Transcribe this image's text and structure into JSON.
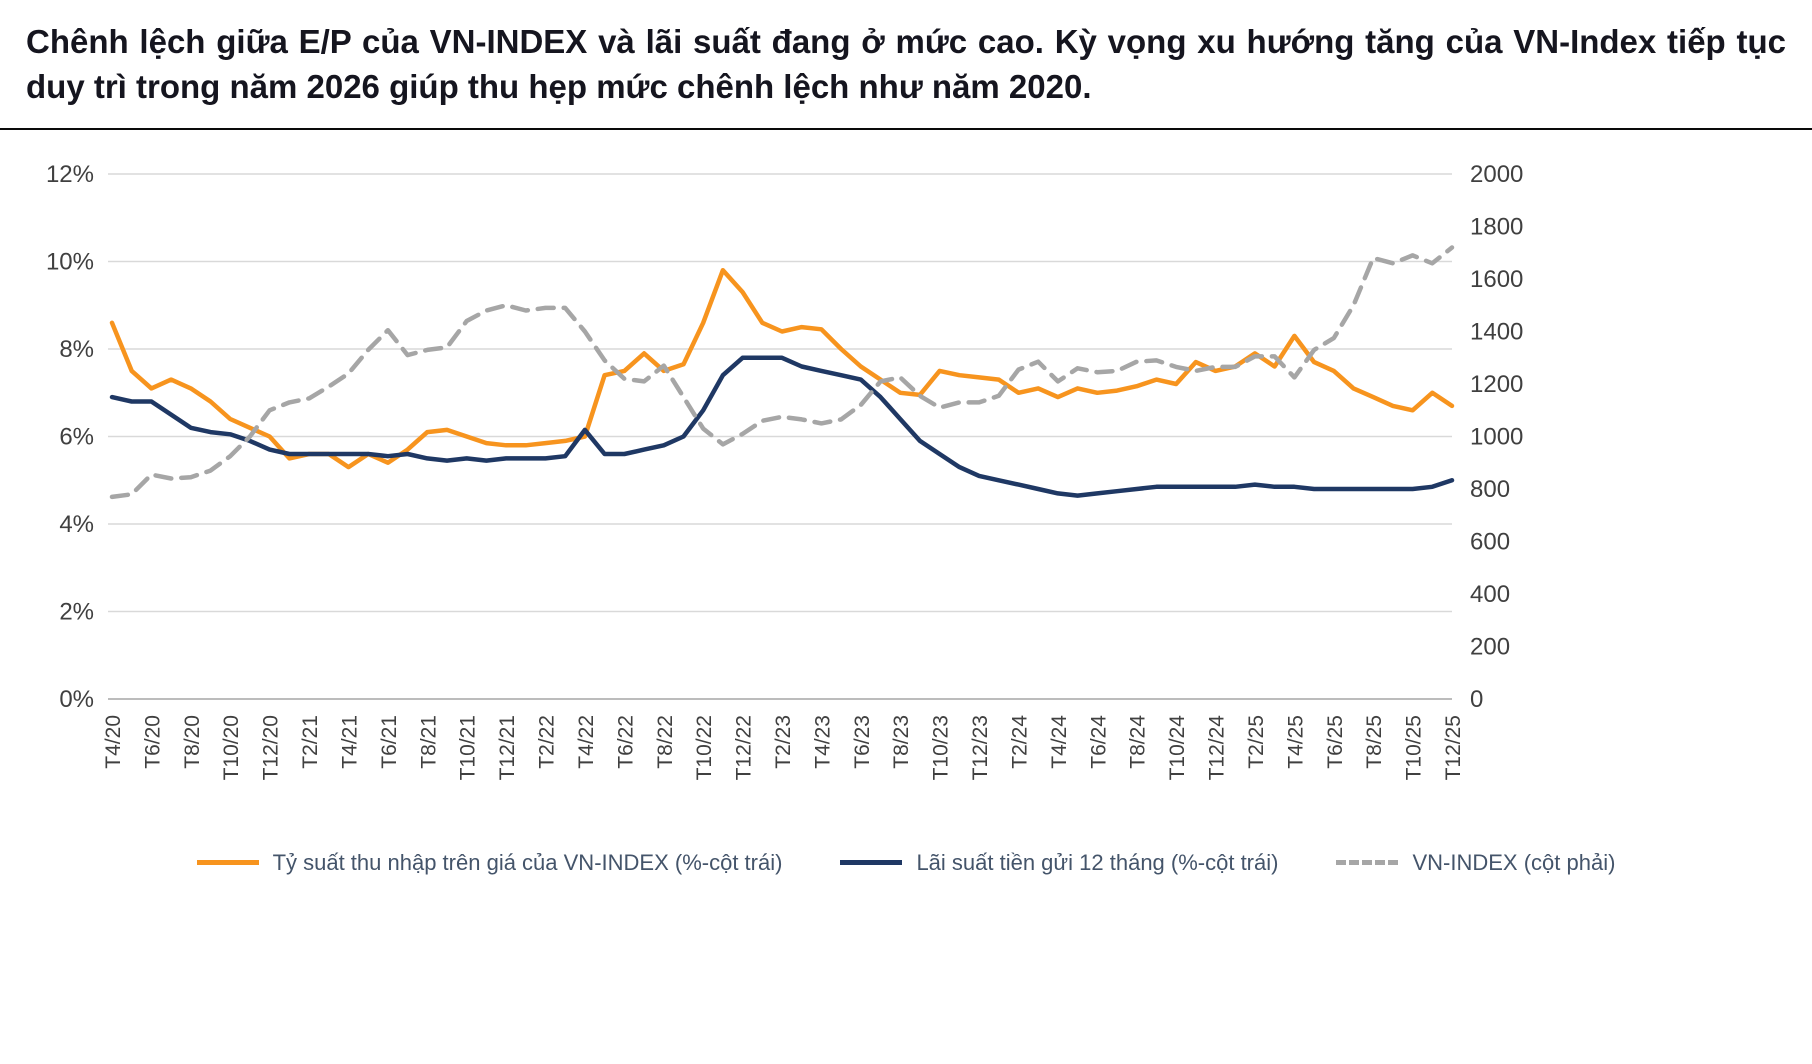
{
  "title": "Chênh lệch giữa E/P của VN-INDEX và lãi suất đang ở mức cao. Kỳ vọng xu hướng tăng của VN-Index tiếp tục duy trì trong năm 2026 giúp thu hẹp mức chênh lệch như năm 2020.",
  "colors": {
    "ep_yield_line": "#F7941E",
    "deposit_rate_line": "#1F3864",
    "vnindex_line": "#A6A6A6",
    "gridline": "#D9D9D9",
    "axis_text": "#404040",
    "title_text": "#15151f"
  },
  "chart_data": {
    "type": "line",
    "title": "",
    "xlabel": "",
    "ylabel_left": "",
    "ylabel_right": "",
    "points_count": 69,
    "x_ticks_every_n_points": 2,
    "x_tick_labels": [
      "T4/20",
      "T6/20",
      "T8/20",
      "T10/20",
      "T12/20",
      "T2/21",
      "T4/21",
      "T6/21",
      "T8/21",
      "T10/21",
      "T12/21",
      "T2/22",
      "T4/22",
      "T6/22",
      "T8/22",
      "T10/22",
      "T12/22",
      "T2/23",
      "T4/23",
      "T6/23",
      "T8/23",
      "T10/23",
      "T12/23",
      "T2/24",
      "T4/24",
      "T6/24",
      "T8/24",
      "T10/24",
      "T12/24",
      "T2/25",
      "T4/25",
      "T6/25",
      "T8/25",
      "T10/25",
      "T12/25"
    ],
    "left_axis": {
      "min": 0,
      "max": 12,
      "ticks": [
        "12%",
        "10%",
        "8%",
        "6%",
        "4%",
        "2%",
        "0%"
      ]
    },
    "right_axis": {
      "min": 0,
      "max": 2000,
      "ticks": [
        "2000",
        "1800",
        "1600",
        "1400",
        "1200",
        "1000",
        "800",
        "600",
        "400",
        "200",
        "0"
      ]
    },
    "grid": "horizontal",
    "legend_position": "bottom",
    "series": [
      {
        "name": "Tỷ suất thu nhập trên giá của VN-INDEX (%-cột trái)",
        "axis": "left",
        "color": "#F7941E",
        "style": "solid",
        "values": [
          8.6,
          7.5,
          7.1,
          7.3,
          7.1,
          6.8,
          6.4,
          6.2,
          6.0,
          5.5,
          5.6,
          5.6,
          5.3,
          5.6,
          5.4,
          5.7,
          6.1,
          6.15,
          6.0,
          5.85,
          5.8,
          5.8,
          5.85,
          5.9,
          6.0,
          7.4,
          7.5,
          7.9,
          7.5,
          7.65,
          8.6,
          9.8,
          9.3,
          8.6,
          8.4,
          8.5,
          8.45,
          8.0,
          7.6,
          7.3,
          7.0,
          6.95,
          7.5,
          7.4,
          7.35,
          7.3,
          7.0,
          7.1,
          6.9,
          7.1,
          7.0,
          7.05,
          7.15,
          7.3,
          7.2,
          7.7,
          7.5,
          7.6,
          7.9,
          7.6,
          8.3,
          7.7,
          7.5,
          7.1,
          6.9,
          6.7,
          6.6,
          7.0,
          6.7
        ]
      },
      {
        "name": "Lãi suất tiền gửi 12 tháng (%-cột trái)",
        "axis": "left",
        "color": "#1F3864",
        "style": "solid",
        "values": [
          6.9,
          6.8,
          6.8,
          6.5,
          6.2,
          6.1,
          6.05,
          5.9,
          5.7,
          5.6,
          5.6,
          5.6,
          5.6,
          5.6,
          5.55,
          5.6,
          5.5,
          5.45,
          5.5,
          5.45,
          5.5,
          5.5,
          5.5,
          5.55,
          6.15,
          5.6,
          5.6,
          5.7,
          5.8,
          6.0,
          6.6,
          7.4,
          7.8,
          7.8,
          7.8,
          7.6,
          7.5,
          7.4,
          7.3,
          6.9,
          6.4,
          5.9,
          5.6,
          5.3,
          5.1,
          5.0,
          4.9,
          4.8,
          4.7,
          4.65,
          4.7,
          4.75,
          4.8,
          4.85,
          4.85,
          4.85,
          4.85,
          4.85,
          4.9,
          4.85,
          4.85,
          4.8,
          4.8,
          4.8,
          4.8,
          4.8,
          4.8,
          4.85,
          5.0
        ]
      },
      {
        "name": "VN-INDEX (cột phải)",
        "axis": "right",
        "color": "#A6A6A6",
        "style": "dashed",
        "values": [
          770,
          780,
          855,
          840,
          845,
          870,
          925,
          1000,
          1100,
          1130,
          1145,
          1190,
          1240,
          1330,
          1405,
          1310,
          1330,
          1340,
          1440,
          1480,
          1500,
          1480,
          1490,
          1490,
          1400,
          1290,
          1220,
          1210,
          1270,
          1150,
          1030,
          970,
          1010,
          1060,
          1075,
          1065,
          1050,
          1065,
          1120,
          1210,
          1225,
          1155,
          1110,
          1130,
          1130,
          1155,
          1255,
          1285,
          1210,
          1260,
          1245,
          1250,
          1285,
          1290,
          1265,
          1250,
          1265,
          1265,
          1305,
          1305,
          1225,
          1330,
          1375,
          1500,
          1680,
          1660,
          1690,
          1660,
          1720
        ]
      }
    ]
  }
}
